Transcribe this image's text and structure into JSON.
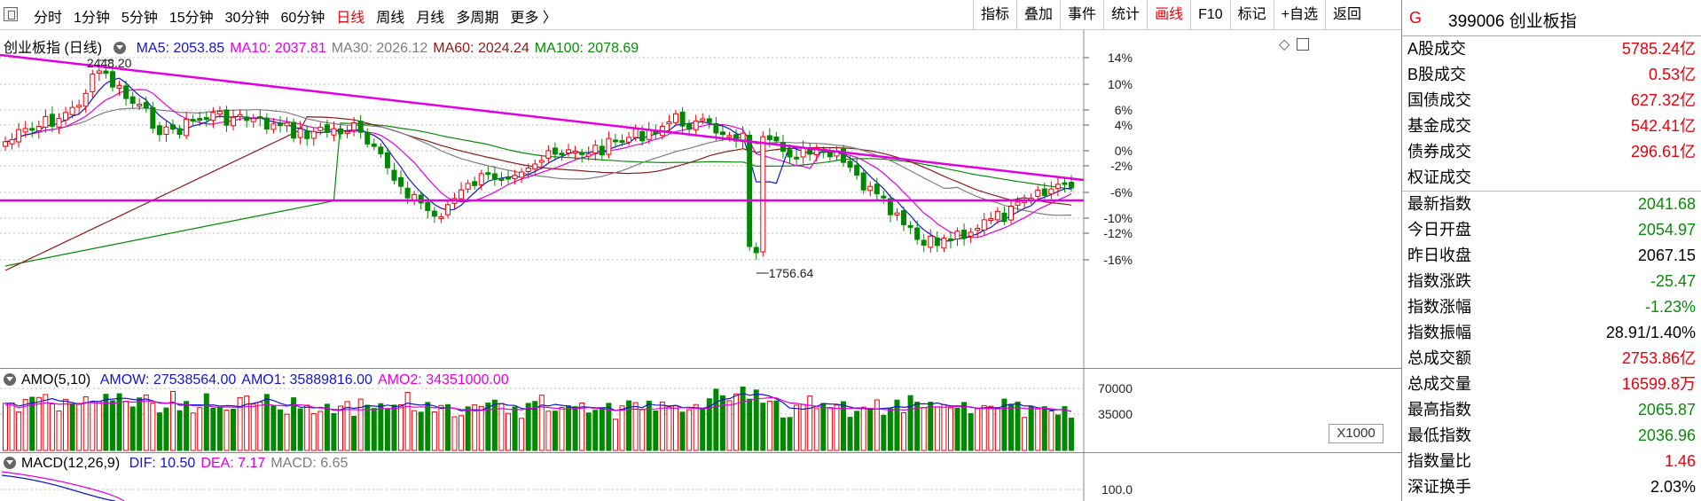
{
  "toolbar": {
    "periods": [
      {
        "label": "分时"
      },
      {
        "label": "1分钟"
      },
      {
        "label": "5分钟"
      },
      {
        "label": "15分钟"
      },
      {
        "label": "30分钟"
      },
      {
        "label": "60分钟"
      },
      {
        "label": "日线",
        "active": true
      },
      {
        "label": "周线"
      },
      {
        "label": "月线"
      },
      {
        "label": "多周期"
      },
      {
        "label": "更多 〉"
      }
    ],
    "buttons": [
      {
        "label": "指标"
      },
      {
        "label": "叠加"
      },
      {
        "label": "事件"
      },
      {
        "label": "统计"
      },
      {
        "label": "画线",
        "active": true
      },
      {
        "label": "F10"
      },
      {
        "label": "标记"
      },
      {
        "label": "+自选"
      },
      {
        "label": "返回"
      }
    ]
  },
  "price_pane": {
    "name": "创业板指 (日线)",
    "ma": [
      {
        "label": "MA5: 2053.85",
        "color": "#1515c8"
      },
      {
        "label": "MA10: 2037.81",
        "color": "#e000e0"
      },
      {
        "label": "MA30: 2026.12",
        "color": "#7d7d7d"
      },
      {
        "label": "MA60: 2024.24",
        "color": "#8b1a1a"
      },
      {
        "label": "MA100: 2078.69",
        "color": "#0a8a0a"
      }
    ],
    "yaxis": [
      "14%",
      "10%",
      "6%",
      "4%",
      "0%",
      "-2%",
      "-6%",
      "-10%",
      "-12%",
      "-16%"
    ],
    "high_label": "2448.20",
    "low_label": "1756.64"
  },
  "volume_pane": {
    "indicator": "AMO(5,10)",
    "items": [
      {
        "label": "AMOW: 27538564.00",
        "color": "#1515c8"
      },
      {
        "label": "AMO1: 35889816.00",
        "color": "#1515c8"
      },
      {
        "label": "AMO2: 34351000.00",
        "color": "#e000e0"
      }
    ],
    "yaxis": [
      "70000",
      "35000"
    ],
    "unit": "X1000"
  },
  "macd_pane": {
    "indicator": "MACD(12,26,9)",
    "items": [
      {
        "label": "DIF: 10.50",
        "color": "#1515c8"
      },
      {
        "label": "DEA: 7.17",
        "color": "#e000e0"
      },
      {
        "label": "MACD: 6.65",
        "color": "#7d7d7d"
      }
    ],
    "yaxis": [
      "100.0"
    ]
  },
  "quote": {
    "code": "399006",
    "name": "创业板指",
    "rows": [
      {
        "k": "A股成交",
        "v": "5785.24亿",
        "c": "red"
      },
      {
        "k": "B股成交",
        "v": "0.53亿",
        "c": "red"
      },
      {
        "k": "国债成交",
        "v": "627.32亿",
        "c": "red"
      },
      {
        "k": "基金成交",
        "v": "542.41亿",
        "c": "red"
      },
      {
        "k": "债券成交",
        "v": "296.61亿",
        "c": "red"
      },
      {
        "k": "权证成交",
        "v": "",
        "c": "red"
      },
      {
        "k": "最新指数",
        "v": "2041.68",
        "c": "green",
        "sep": true
      },
      {
        "k": "今日开盘",
        "v": "2054.97",
        "c": "green"
      },
      {
        "k": "昨日收盘",
        "v": "2067.15",
        "c": "black"
      },
      {
        "k": "指数涨跌",
        "v": "-25.47",
        "c": "green"
      },
      {
        "k": "指数涨幅",
        "v": "-1.23%",
        "c": "green"
      },
      {
        "k": "指数振幅",
        "v": "28.91/1.40%",
        "c": "black"
      },
      {
        "k": "总成交额",
        "v": "2753.86亿",
        "c": "red"
      },
      {
        "k": "总成交量",
        "v": "16599.8万",
        "c": "red"
      },
      {
        "k": "最高指数",
        "v": "2065.87",
        "c": "green"
      },
      {
        "k": "最低指数",
        "v": "2036.96",
        "c": "green"
      },
      {
        "k": "指数量比",
        "v": "1.46",
        "c": "red"
      },
      {
        "k": "深证换手",
        "v": "2.03%",
        "c": "black"
      }
    ]
  },
  "colors": {
    "up": "#e8000b",
    "down": "#008800",
    "trend": "#e000e0"
  }
}
